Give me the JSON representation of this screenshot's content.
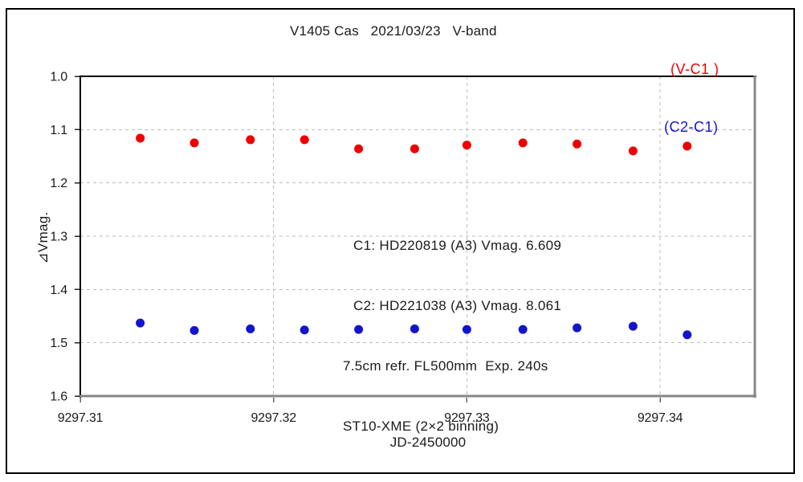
{
  "figure": {
    "title": "V1405 Cas   2021/03/23   V-band",
    "y_axis_label": "⊿Vmag.",
    "x_axis_label": "JD-2450000",
    "legend": {
      "series1_label": "(V-C1 )",
      "series1_color": "#ee0000",
      "series2_label": "(C2-C1)",
      "series2_color": "#1414cc"
    },
    "annotation": {
      "lines": [
        "C1: HD220819 (A3) Vmag. 6.609",
        "C2: HD221038 (A3) Vmag. 8.061",
        "7.5cm refr. FL500mm  Exp. 240s",
        "ST10-XME (2×2 binning)"
      ]
    }
  },
  "chart_data": {
    "type": "scatter",
    "title": "V1405 Cas 2021/03/23 V-band",
    "xlabel": "JD-2450000",
    "ylabel": "⊿Vmag.",
    "x": [
      9297.3131,
      9297.3159,
      9297.3188,
      9297.3216,
      9297.3244,
      9297.3273,
      9297.33,
      9297.3329,
      9297.3357,
      9297.3386,
      9297.3414
    ],
    "series": [
      {
        "name": "(V-C1)",
        "color": "#ee0000",
        "values": [
          1.116,
          1.125,
          1.119,
          1.119,
          1.136,
          1.136,
          1.129,
          1.125,
          1.127,
          1.14,
          1.131
        ]
      },
      {
        "name": "(C2-C1)",
        "color": "#1414cc",
        "values": [
          1.463,
          1.477,
          1.474,
          1.476,
          1.475,
          1.474,
          1.475,
          1.475,
          1.472,
          1.469,
          1.485
        ]
      }
    ],
    "xlim": [
      9297.31,
      9297.3449
    ],
    "ylim": [
      1.0,
      1.6
    ],
    "y_axis_inverted": true,
    "xticks": [
      9297.31,
      9297.32,
      9297.33,
      9297.34
    ],
    "yticks": [
      1.0,
      1.1,
      1.2,
      1.3,
      1.4,
      1.5,
      1.6
    ],
    "grid_xticks": [
      9297.32,
      9297.33,
      9297.34
    ],
    "grid_yticks": [
      1.1,
      1.2,
      1.3,
      1.4,
      1.5
    ],
    "grid": "dashed",
    "grid_color": "#bdbdbd",
    "axis_color_topleft": "#000000",
    "axis_color_bottomright": "#878787",
    "legend_position": "top-right",
    "marker_radius_px": 5.5
  }
}
